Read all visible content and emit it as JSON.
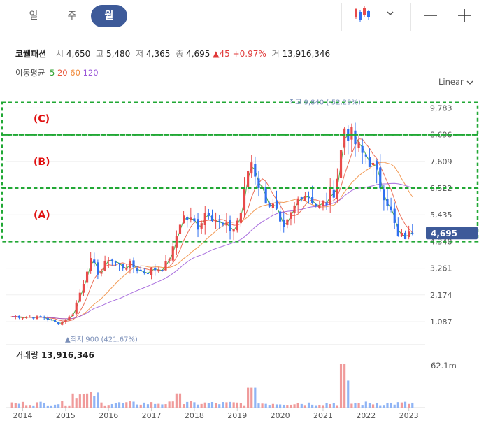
{
  "tabs": [
    {
      "label": "일",
      "active": false
    },
    {
      "label": "주",
      "active": false
    },
    {
      "label": "월",
      "active": true
    }
  ],
  "controls": {
    "chart_type_icon": "candlestick-icon",
    "zoom_out": "minus-icon",
    "zoom_in": "plus-icon"
  },
  "stock": {
    "name": "코웰패션",
    "open_label": "시",
    "open": "4,650",
    "high_label": "고",
    "high": "5,480",
    "low_label": "저",
    "low": "4,365",
    "close_label": "종",
    "close": "4,695",
    "change": "▲45",
    "change_pct": "+0.97%",
    "volume_label": "거",
    "volume": "13,916,346"
  },
  "ma": {
    "label": "이동평균",
    "periods": [
      "5",
      "20",
      "60",
      "120"
    ],
    "colors": [
      "#2ca02c",
      "#e8553a",
      "#f08a3a",
      "#9a56d8"
    ]
  },
  "scale_toggle": "Linear",
  "volume_panel": {
    "label": "거래량",
    "value": "13,916,346",
    "max_label": "62.1m"
  },
  "colors": {
    "up": "#e84a4a",
    "down": "#2f6ff0",
    "annot": "#21a835",
    "annot_text": "#e01010",
    "current_price_bg": "#3d5a99"
  },
  "chart_data": {
    "type": "candlestick",
    "x_ticks": [
      "2014",
      "2015",
      "2016",
      "2017",
      "2018",
      "2019",
      "2020",
      "2021",
      "2022",
      "2023"
    ],
    "y_ticks": [
      1087,
      2174,
      3261,
      4348,
      5435,
      6522,
      7609,
      8696,
      9783
    ],
    "y_tick_labels": [
      "1,087",
      "2,174",
      "3,261",
      "4,348",
      "5,435",
      "6,522",
      "7,609",
      "8,696",
      "9,783"
    ],
    "ylim": [
      0,
      10500
    ],
    "current_price": "4,695",
    "max_marker": "최고 9,840 (-52.29%)",
    "min_marker": "최저 900 (421.67%)",
    "series_close_anchors": [
      {
        "x": 2013.75,
        "y": 1300
      },
      {
        "x": 2014.5,
        "y": 1250
      },
      {
        "x": 2014.85,
        "y": 1000
      },
      {
        "x": 2015.15,
        "y": 1350
      },
      {
        "x": 2015.4,
        "y": 2600
      },
      {
        "x": 2015.55,
        "y": 3600
      },
      {
        "x": 2015.8,
        "y": 3000
      },
      {
        "x": 2016.0,
        "y": 3700
      },
      {
        "x": 2016.3,
        "y": 3300
      },
      {
        "x": 2016.5,
        "y": 3400
      },
      {
        "x": 2016.8,
        "y": 3100
      },
      {
        "x": 2017.0,
        "y": 3200
      },
      {
        "x": 2017.3,
        "y": 3300
      },
      {
        "x": 2017.5,
        "y": 4000
      },
      {
        "x": 2017.7,
        "y": 5400
      },
      {
        "x": 2017.9,
        "y": 5200
      },
      {
        "x": 2018.1,
        "y": 5000
      },
      {
        "x": 2018.3,
        "y": 5700
      },
      {
        "x": 2018.6,
        "y": 5000
      },
      {
        "x": 2018.9,
        "y": 4800
      },
      {
        "x": 2019.1,
        "y": 5600
      },
      {
        "x": 2019.3,
        "y": 7800
      },
      {
        "x": 2019.5,
        "y": 6700
      },
      {
        "x": 2019.7,
        "y": 6000
      },
      {
        "x": 2019.9,
        "y": 5600
      },
      {
        "x": 2020.05,
        "y": 4600
      },
      {
        "x": 2020.3,
        "y": 5600
      },
      {
        "x": 2020.5,
        "y": 6400
      },
      {
        "x": 2020.7,
        "y": 6200
      },
      {
        "x": 2020.9,
        "y": 5700
      },
      {
        "x": 2021.1,
        "y": 6000
      },
      {
        "x": 2021.3,
        "y": 6600
      },
      {
        "x": 2021.5,
        "y": 9000
      },
      {
        "x": 2021.7,
        "y": 8500
      },
      {
        "x": 2021.9,
        "y": 7900
      },
      {
        "x": 2022.05,
        "y": 7800
      },
      {
        "x": 2022.3,
        "y": 6800
      },
      {
        "x": 2022.5,
        "y": 6000
      },
      {
        "x": 2022.75,
        "y": 4500
      },
      {
        "x": 2023.0,
        "y": 4600
      },
      {
        "x": 2023.15,
        "y": 4695
      }
    ],
    "annotations": [
      {
        "label": "(C)",
        "range": [
          8696,
          10000
        ]
      },
      {
        "label": "(B)",
        "range": [
          6522,
          8696
        ]
      },
      {
        "label": "(A)",
        "range": [
          4348,
          6522
        ]
      }
    ],
    "volume_ymax": 62.1
  }
}
